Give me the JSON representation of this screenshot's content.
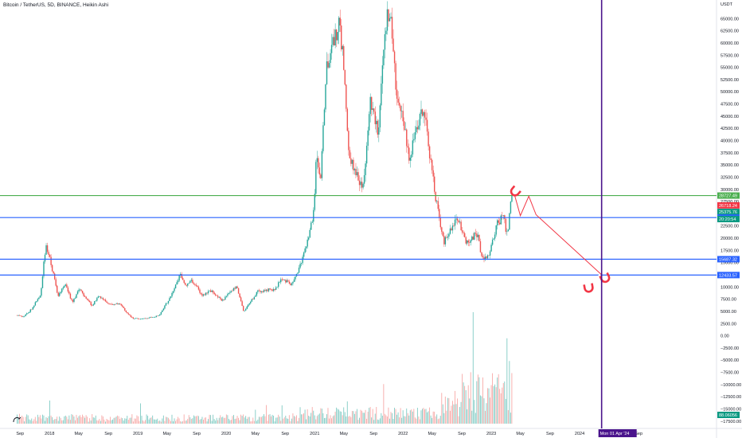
{
  "header": {
    "title": "Bitcoin / TetherUS, 5D, BINANCE, Heikin Ashi"
  },
  "colors": {
    "up": "#26a69a",
    "down": "#ef5350",
    "support_line": "#2962ff",
    "resistance_line": "#4caf50",
    "time_marker": "#4a148c",
    "projection": "#f23645",
    "vol_up": "#80cbc4",
    "vol_down": "#f7a9a7"
  },
  "chart_data": {
    "type": "candlestick",
    "currency_label": "USDT",
    "y_ticks": [
      "65000.00",
      "62500.00",
      "60000.00",
      "57500.00",
      "55000.00",
      "52500.00",
      "50000.00",
      "47500.00",
      "45000.00",
      "42500.00",
      "40000.00",
      "37500.00",
      "35000.00",
      "32500.00",
      "30000.00",
      "27500.00",
      "25000.00",
      "22500.00",
      "20000.00",
      "17500.00",
      "15000.00",
      "12500.00",
      "10000.00",
      "7500.00",
      "5000.00",
      "2500.00",
      "0.00",
      "−2500.00",
      "−5000.00",
      "−7500.00",
      "−10000.00",
      "−12500.00",
      "−15000.00",
      "−17500.00"
    ],
    "y_tick_values": [
      65000,
      62500,
      60000,
      57500,
      55000,
      52500,
      50000,
      47500,
      45000,
      42500,
      40000,
      37500,
      35000,
      32500,
      30000,
      27500,
      25000,
      22500,
      20000,
      17500,
      15000,
      12500,
      10000,
      7500,
      5000,
      2500,
      0,
      -2500,
      -5000,
      -7500,
      -10000,
      -12500,
      -15000,
      -17500
    ],
    "x_ticks": [
      {
        "label": "Sep",
        "date": "2017-09-01"
      },
      {
        "label": "2018",
        "date": "2018-01-01"
      },
      {
        "label": "May",
        "date": "2018-05-01"
      },
      {
        "label": "Sep",
        "date": "2018-09-01"
      },
      {
        "label": "2019",
        "date": "2019-01-01"
      },
      {
        "label": "May",
        "date": "2019-05-01"
      },
      {
        "label": "Sep",
        "date": "2019-09-01"
      },
      {
        "label": "2020",
        "date": "2020-01-01"
      },
      {
        "label": "May",
        "date": "2020-05-01"
      },
      {
        "label": "Sep",
        "date": "2020-09-01"
      },
      {
        "label": "2021",
        "date": "2021-01-01"
      },
      {
        "label": "May",
        "date": "2021-05-01"
      },
      {
        "label": "Sep",
        "date": "2021-09-01"
      },
      {
        "label": "2022",
        "date": "2022-01-01"
      },
      {
        "label": "May",
        "date": "2022-05-01"
      },
      {
        "label": "Sep",
        "date": "2022-09-01"
      },
      {
        "label": "2023",
        "date": "2023-01-01"
      },
      {
        "label": "May",
        "date": "2023-05-01"
      },
      {
        "label": "Sep",
        "date": "2023-09-01"
      },
      {
        "label": "2024",
        "date": "2024-01-01"
      },
      {
        "label": "Sep",
        "date": "2024-09-01"
      }
    ],
    "price_path": [
      {
        "date": "2017-08-20",
        "price": 4200
      },
      {
        "date": "2017-09-15",
        "price": 3800
      },
      {
        "date": "2017-10-20",
        "price": 5500
      },
      {
        "date": "2017-11-25",
        "price": 8500
      },
      {
        "date": "2017-12-17",
        "price": 19000
      },
      {
        "date": "2018-01-10",
        "price": 14000
      },
      {
        "date": "2018-02-06",
        "price": 8000
      },
      {
        "date": "2018-03-05",
        "price": 10500
      },
      {
        "date": "2018-04-05",
        "price": 7000
      },
      {
        "date": "2018-05-05",
        "price": 9500
      },
      {
        "date": "2018-06-25",
        "price": 6200
      },
      {
        "date": "2018-07-25",
        "price": 8200
      },
      {
        "date": "2018-09-05",
        "price": 6500
      },
      {
        "date": "2018-10-20",
        "price": 6400
      },
      {
        "date": "2018-11-20",
        "price": 4500
      },
      {
        "date": "2018-12-15",
        "price": 3500
      },
      {
        "date": "2019-02-01",
        "price": 3500
      },
      {
        "date": "2019-04-01",
        "price": 4200
      },
      {
        "date": "2019-05-15",
        "price": 8000
      },
      {
        "date": "2019-06-26",
        "price": 12500
      },
      {
        "date": "2019-07-20",
        "price": 10000
      },
      {
        "date": "2019-08-10",
        "price": 11500
      },
      {
        "date": "2019-09-25",
        "price": 8300
      },
      {
        "date": "2019-10-27",
        "price": 9300
      },
      {
        "date": "2019-12-15",
        "price": 7100
      },
      {
        "date": "2020-02-13",
        "price": 10300
      },
      {
        "date": "2020-03-13",
        "price": 5000
      },
      {
        "date": "2020-05-10",
        "price": 9000
      },
      {
        "date": "2020-07-25",
        "price": 9600
      },
      {
        "date": "2020-08-15",
        "price": 11800
      },
      {
        "date": "2020-09-25",
        "price": 10500
      },
      {
        "date": "2020-10-25",
        "price": 13000
      },
      {
        "date": "2020-11-25",
        "price": 18500
      },
      {
        "date": "2020-12-25",
        "price": 24000
      },
      {
        "date": "2021-01-10",
        "price": 38000
      },
      {
        "date": "2021-01-25",
        "price": 32000
      },
      {
        "date": "2021-02-21",
        "price": 56000
      },
      {
        "date": "2021-03-15",
        "price": 59000
      },
      {
        "date": "2021-04-14",
        "price": 63500
      },
      {
        "date": "2021-05-01",
        "price": 56000
      },
      {
        "date": "2021-05-20",
        "price": 37000
      },
      {
        "date": "2021-06-20",
        "price": 33000
      },
      {
        "date": "2021-07-20",
        "price": 30500
      },
      {
        "date": "2021-08-20",
        "price": 48000
      },
      {
        "date": "2021-09-20",
        "price": 42000
      },
      {
        "date": "2021-10-20",
        "price": 64000
      },
      {
        "date": "2021-11-10",
        "price": 67000
      },
      {
        "date": "2021-12-05",
        "price": 50000
      },
      {
        "date": "2022-01-05",
        "price": 43000
      },
      {
        "date": "2022-01-25",
        "price": 36000
      },
      {
        "date": "2022-03-28",
        "price": 47000
      },
      {
        "date": "2022-05-10",
        "price": 30000
      },
      {
        "date": "2022-06-18",
        "price": 19000
      },
      {
        "date": "2022-08-15",
        "price": 24000
      },
      {
        "date": "2022-09-20",
        "price": 19000
      },
      {
        "date": "2022-11-05",
        "price": 21000
      },
      {
        "date": "2022-11-21",
        "price": 15800
      },
      {
        "date": "2022-12-25",
        "price": 16800
      },
      {
        "date": "2023-01-25",
        "price": 23000
      },
      {
        "date": "2023-02-20",
        "price": 24500
      },
      {
        "date": "2023-03-10",
        "price": 20000
      },
      {
        "date": "2023-03-20",
        "price": 28000
      },
      {
        "date": "2023-03-31",
        "price": 28000
      }
    ],
    "horizontal_levels": [
      {
        "price": 28727.49,
        "label": "28727.49",
        "color": "#4caf50"
      },
      {
        "price": 24216.28,
        "label": "24216.28",
        "color": "#2962ff"
      },
      {
        "price": 15687.32,
        "label": "15687.32",
        "color": "#2962ff"
      },
      {
        "price": 12433.57,
        "label": "12433.57",
        "color": "#2962ff"
      }
    ],
    "price_labels": [
      {
        "price": 26718.24,
        "label": "26718.24",
        "color": "#f23645"
      },
      {
        "price": 25375.76,
        "label": "25375.76",
        "color": "#089981"
      },
      {
        "price": 24216.28,
        "label": "24216.28",
        "color": "#2962ff"
      }
    ],
    "axis_markers": [
      {
        "label": "20:20:54",
        "color": "#089981"
      }
    ],
    "volume_label": {
      "label": "88.06056",
      "color": "#089981"
    },
    "projection_path": [
      {
        "date": "2023-04-08",
        "price": 28700
      },
      {
        "date": "2023-05-01",
        "price": 24600
      },
      {
        "date": "2023-06-05",
        "price": 28600
      },
      {
        "date": "2023-07-05",
        "price": 24800
      },
      {
        "date": "2024-04-01",
        "price": 12500
      }
    ],
    "time_marker": {
      "date": "2024-04-01",
      "label": "Mon 01 Apr '24"
    },
    "ylim": [
      -19000,
      67500
    ],
    "xlim": [
      "2017-06-10",
      "2025-07-20"
    ]
  }
}
